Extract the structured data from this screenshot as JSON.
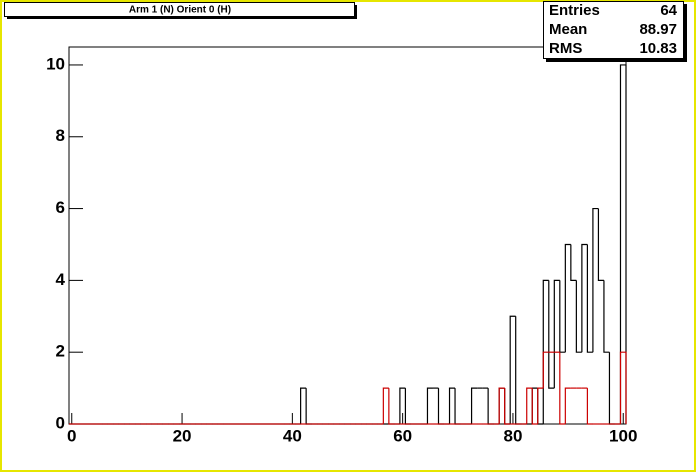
{
  "chart_data": {
    "type": "histogram",
    "title": "Arm 1 (N) Orient 0 (H)",
    "stats": [
      [
        "Entries",
        "64"
      ],
      [
        "Mean",
        "88.97"
      ],
      [
        "RMS",
        "10.83"
      ]
    ],
    "bins": [
      -0.5,
      0.5,
      1.5,
      2.5,
      3.5,
      4.5,
      5.5,
      6.5,
      7.5,
      8.5,
      9.5,
      10.5,
      11.5,
      12.5,
      13.5,
      14.5,
      15.5,
      16.5,
      17.5,
      18.5,
      19.5,
      20.5,
      21.5,
      22.5,
      23.5,
      24.5,
      25.5,
      26.5,
      27.5,
      28.5,
      29.5,
      30.5,
      31.5,
      32.5,
      33.5,
      34.5,
      35.5,
      36.5,
      37.5,
      38.5,
      39.5,
      40.5,
      41.5,
      42.5,
      43.5,
      44.5,
      45.5,
      46.5,
      47.5,
      48.5,
      49.5,
      50.5,
      51.5,
      52.5,
      53.5,
      54.5,
      55.5,
      56.5,
      57.5,
      58.5,
      59.5,
      60.5,
      61.5,
      62.5,
      63.5,
      64.5,
      65.5,
      66.5,
      67.5,
      68.5,
      69.5,
      70.5,
      71.5,
      72.5,
      73.5,
      74.5,
      75.5,
      76.5,
      77.5,
      78.5,
      79.5,
      80.5,
      81.5,
      82.5,
      83.5,
      84.5,
      85.5,
      86.5,
      87.5,
      88.5,
      89.5,
      90.5,
      91.5,
      92.5,
      93.5,
      94.5,
      95.5,
      96.5,
      97.5,
      98.5,
      99.5,
      100.5
    ],
    "series": [
      {
        "color": "#000000",
        "values": [
          0,
          0,
          0,
          0,
          0,
          0,
          0,
          0,
          0,
          0,
          0,
          0,
          0,
          0,
          0,
          0,
          0,
          0,
          0,
          0,
          0,
          0,
          0,
          0,
          0,
          0,
          0,
          0,
          0,
          0,
          0,
          0,
          0,
          0,
          0,
          0,
          0,
          0,
          0,
          0,
          0,
          0,
          1,
          0,
          0,
          0,
          0,
          0,
          0,
          0,
          0,
          0,
          0,
          0,
          0,
          0,
          0,
          0,
          0,
          0,
          1,
          0,
          0,
          0,
          0,
          1,
          1,
          0,
          0,
          1,
          0,
          0,
          0,
          1,
          1,
          1,
          0,
          0,
          1,
          0,
          3,
          0,
          0,
          0,
          1,
          0,
          4,
          1,
          4,
          2,
          5,
          4,
          2,
          5,
          2,
          6,
          4,
          2,
          0,
          0,
          10
        ]
      },
      {
        "color": "#cc0000",
        "values": [
          0,
          0,
          0,
          0,
          0,
          0,
          0,
          0,
          0,
          0,
          0,
          0,
          0,
          0,
          0,
          0,
          0,
          0,
          0,
          0,
          0,
          0,
          0,
          0,
          0,
          0,
          0,
          0,
          0,
          0,
          0,
          0,
          0,
          0,
          0,
          0,
          0,
          0,
          0,
          0,
          0,
          0,
          0,
          0,
          0,
          0,
          0,
          0,
          0,
          0,
          0,
          0,
          0,
          0,
          0,
          0,
          0,
          1,
          0,
          0,
          0,
          0,
          0,
          0,
          0,
          0,
          0,
          0,
          0,
          0,
          0,
          0,
          0,
          0,
          0,
          0,
          0,
          0,
          1,
          0,
          0,
          0,
          0,
          1,
          0,
          1,
          2,
          2,
          2,
          0,
          1,
          1,
          1,
          1,
          0,
          0,
          0,
          0,
          0,
          0,
          2
        ]
      }
    ],
    "xlim": [
      -0.5,
      100.5
    ],
    "xticks": [
      0,
      20,
      40,
      60,
      80,
      100
    ],
    "ylim": [
      0,
      10.5
    ],
    "yticks": [
      0,
      2,
      4,
      6,
      8,
      10
    ]
  }
}
